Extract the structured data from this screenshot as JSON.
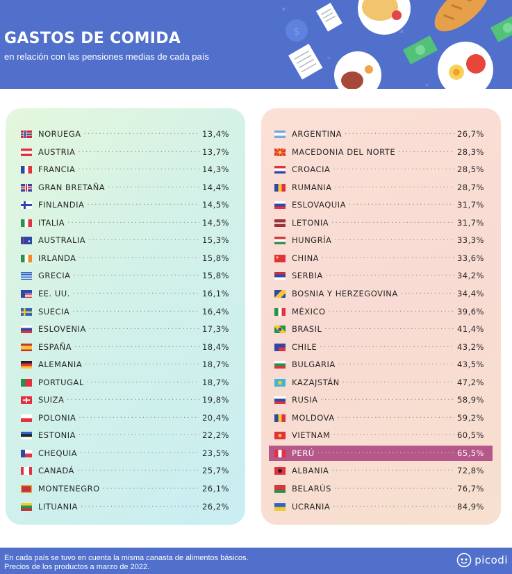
{
  "header": {
    "title": "GASTOS DE COMIDA",
    "subtitle": "en relación con las pensiones medias de cada país"
  },
  "colors": {
    "header_bg": "#5170cc",
    "highlight": "#b55889"
  },
  "left_list": [
    {
      "name": "NORUEGA",
      "value": "13,4%",
      "flag": "norway-flag-icon"
    },
    {
      "name": "AUSTRIA",
      "value": "13,7%",
      "flag": "austria-flag-icon"
    },
    {
      "name": "FRANCIA",
      "value": "14,3%",
      "flag": "france-flag-icon"
    },
    {
      "name": "GRAN BRETAÑA",
      "value": "14,4%",
      "flag": "uk-flag-icon"
    },
    {
      "name": "FINLANDIA",
      "value": "14,5%",
      "flag": "finland-flag-icon"
    },
    {
      "name": "ITALIA",
      "value": "14,5%",
      "flag": "italy-flag-icon"
    },
    {
      "name": "AUSTRALIA",
      "value": "15,3%",
      "flag": "australia-flag-icon"
    },
    {
      "name": "IRLANDA",
      "value": "15,8%",
      "flag": "ireland-flag-icon"
    },
    {
      "name": "GRECIA",
      "value": "15,8%",
      "flag": "greece-flag-icon"
    },
    {
      "name": "EE. UU.",
      "value": "16,1%",
      "flag": "usa-flag-icon"
    },
    {
      "name": "SUECIA",
      "value": "16,4%",
      "flag": "sweden-flag-icon"
    },
    {
      "name": "ESLOVENIA",
      "value": "17,3%",
      "flag": "slovenia-flag-icon"
    },
    {
      "name": "ESPAÑA",
      "value": "18,4%",
      "flag": "spain-flag-icon"
    },
    {
      "name": "ALEMANIA",
      "value": "18,7%",
      "flag": "germany-flag-icon"
    },
    {
      "name": "PORTUGAL",
      "value": "18,7%",
      "flag": "portugal-flag-icon"
    },
    {
      "name": "SUIZA",
      "value": "19,8%",
      "flag": "switzerland-flag-icon"
    },
    {
      "name": "POLONIA",
      "value": "20,4%",
      "flag": "poland-flag-icon"
    },
    {
      "name": "ESTONIA",
      "value": "22,2%",
      "flag": "estonia-flag-icon"
    },
    {
      "name": "CHEQUIA",
      "value": "23,5%",
      "flag": "czechia-flag-icon"
    },
    {
      "name": "CANADÁ",
      "value": "25,7%",
      "flag": "canada-flag-icon"
    },
    {
      "name": "MONTENEGRO",
      "value": "26,1%",
      "flag": "montenegro-flag-icon"
    },
    {
      "name": "LITUANIA",
      "value": "26,2%",
      "flag": "lithuania-flag-icon"
    }
  ],
  "right_list": [
    {
      "name": "ARGENTINA",
      "value": "26,7%",
      "flag": "argentina-flag-icon"
    },
    {
      "name": "MACEDONIA DEL NORTE",
      "value": "28,3%",
      "flag": "north-macedonia-flag-icon"
    },
    {
      "name": "CROACIA",
      "value": "28,5%",
      "flag": "croatia-flag-icon"
    },
    {
      "name": "RUMANIA",
      "value": "28,7%",
      "flag": "romania-flag-icon"
    },
    {
      "name": "ESLOVAQUIA",
      "value": "31,7%",
      "flag": "slovakia-flag-icon"
    },
    {
      "name": "LETONIA",
      "value": "31,7%",
      "flag": "latvia-flag-icon"
    },
    {
      "name": "HUNGRÍA",
      "value": "33,3%",
      "flag": "hungary-flag-icon"
    },
    {
      "name": "CHINA",
      "value": "33,6%",
      "flag": "china-flag-icon"
    },
    {
      "name": "SERBIA",
      "value": "34,2%",
      "flag": "serbia-flag-icon"
    },
    {
      "name": "BOSNIA Y HERZEGOVINA",
      "value": "34,4%",
      "flag": "bosnia-flag-icon"
    },
    {
      "name": "MÉXICO",
      "value": "39,6%",
      "flag": "mexico-flag-icon"
    },
    {
      "name": "BRASIL",
      "value": "41,4%",
      "flag": "brazil-flag-icon"
    },
    {
      "name": "CHILE",
      "value": "43,2%",
      "flag": "chile-flag-icon"
    },
    {
      "name": "BULGARIA",
      "value": "43,5%",
      "flag": "bulgaria-flag-icon"
    },
    {
      "name": "KAZAJSTÁN",
      "value": "47,2%",
      "flag": "kazakhstan-flag-icon"
    },
    {
      "name": "RUSIA",
      "value": "58,9%",
      "flag": "russia-flag-icon"
    },
    {
      "name": "MOLDOVA",
      "value": "59,2%",
      "flag": "moldova-flag-icon"
    },
    {
      "name": "VIETNAM",
      "value": "60,5%",
      "flag": "vietnam-flag-icon"
    },
    {
      "name": "PERÚ",
      "value": "65,5%",
      "flag": "peru-flag-icon",
      "highlight": true
    },
    {
      "name": "ALBANIA",
      "value": "72,8%",
      "flag": "albania-flag-icon"
    },
    {
      "name": "BELARÚS",
      "value": "76,7%",
      "flag": "belarus-flag-icon"
    },
    {
      "name": "UCRANIA",
      "value": "84,9%",
      "flag": "ukraine-flag-icon"
    }
  ],
  "footer": {
    "line1": "En cada país se tuvo en cuenta la misma canasta de alimentos básicos.",
    "line2": "Precios de los productos a marzo de 2022.",
    "logo": "picodi"
  }
}
